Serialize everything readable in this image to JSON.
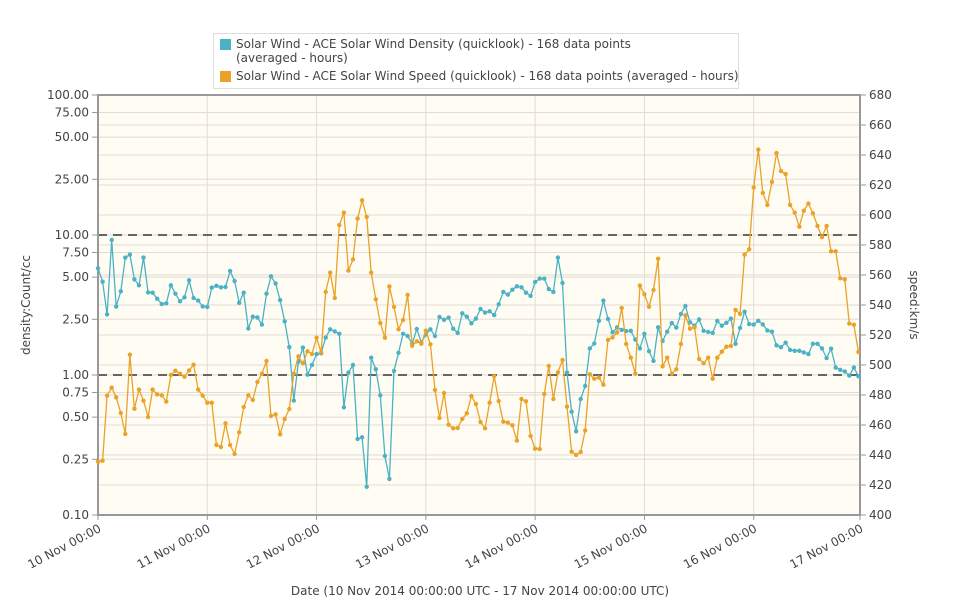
{
  "chart_data": {
    "type": "line",
    "title": "",
    "xlabel": "Date (10 Nov 2014 00:00:00 UTC - 17 Nov 2014 00:00:00 UTC)",
    "x_ticks": [
      "10 Nov 00:00",
      "11 Nov 00:00",
      "12 Nov 00:00",
      "13 Nov 00:00",
      "14 Nov 00:00",
      "15 Nov 00:00",
      "16 Nov 00:00",
      "17 Nov 00:00"
    ],
    "x_unit": "hours since 10 Nov 2014 00:00 UTC",
    "xlim": [
      0,
      168
    ],
    "y_left": {
      "label": "density:Count/cc",
      "scale": "log",
      "lim": [
        0.1,
        100
      ],
      "ticks": [
        0.1,
        0.25,
        0.5,
        0.75,
        1,
        2.5,
        5,
        7.5,
        10,
        25,
        50,
        75,
        100
      ],
      "tick_labels": [
        "0.10",
        "0.25",
        "0.50",
        "0.75",
        "1.00",
        "2.50",
        "5.00",
        "7.50",
        "10.00",
        "25.00",
        "50.00",
        "75.00",
        "100.00"
      ],
      "reference_lines": [
        1,
        10
      ]
    },
    "y_right": {
      "label": "speed:km/s",
      "scale": "linear",
      "lim": [
        400,
        680
      ],
      "ticks": [
        400,
        420,
        440,
        460,
        480,
        500,
        520,
        540,
        560,
        580,
        600,
        620,
        640,
        660,
        680
      ],
      "tick_labels": [
        "400",
        "420",
        "440",
        "460",
        "480",
        "500",
        "520",
        "540",
        "560",
        "580",
        "600",
        "620",
        "640",
        "660",
        "680"
      ]
    },
    "grid": true,
    "legend_position": "top-center",
    "series": [
      {
        "name": "Solar Wind - ACE Solar Wind Density (quicklook) - 168 data points (averaged - hours)",
        "axis": "left",
        "color": "#4bb2c5",
        "values": [
          5.78,
          4.64,
          2.71,
          9.21,
          3.08,
          3.96,
          6.89,
          7.24,
          4.82,
          4.37,
          6.89,
          3.89,
          3.87,
          3.51,
          3.21,
          3.25,
          4.37,
          3.81,
          3.36,
          3.59,
          4.75,
          3.55,
          3.4,
          3.09,
          3.06,
          4.21,
          4.34,
          4.23,
          4.25,
          5.53,
          4.69,
          3.28,
          3.87,
          2.15,
          2.61,
          2.58,
          2.29,
          3.81,
          5.07,
          4.51,
          3.43,
          2.42,
          1.58,
          0.656,
          1.245,
          1.57,
          1.005,
          1.18,
          1.41,
          1.43,
          1.85,
          2.12,
          2.05,
          1.97,
          0.588,
          1.04,
          1.18,
          0.349,
          0.359,
          0.159,
          1.33,
          1.1,
          0.716,
          0.264,
          0.181,
          1.07,
          1.44,
          1.97,
          1.9,
          1.67,
          2.13,
          1.71,
          1.95,
          2.12,
          1.9,
          2.6,
          2.48,
          2.57,
          2.14,
          2.0,
          2.76,
          2.61,
          2.34,
          2.53,
          2.96,
          2.79,
          2.85,
          2.68,
          3.2,
          3.92,
          3.75,
          4.07,
          4.3,
          4.23,
          3.87,
          3.67,
          4.62,
          4.88,
          4.88,
          4.11,
          3.92,
          6.89,
          4.54,
          1.04,
          0.547,
          0.396,
          0.674,
          0.834,
          1.55,
          1.68,
          2.44,
          3.4,
          2.51,
          2.02,
          2.19,
          2.1,
          2.06,
          2.07,
          1.79,
          1.55,
          1.97,
          1.48,
          1.26,
          2.19,
          1.75,
          2.04,
          2.35,
          2.18,
          2.73,
          3.11,
          2.38,
          2.25,
          2.49,
          2.07,
          2.03,
          2.0,
          2.43,
          2.25,
          2.36,
          2.53,
          1.67,
          2.17,
          2.83,
          2.31,
          2.29,
          2.44,
          2.3,
          2.08,
          2.04,
          1.63,
          1.58,
          1.7,
          1.51,
          1.49,
          1.49,
          1.45,
          1.41,
          1.67,
          1.67,
          1.55,
          1.32,
          1.54,
          1.13,
          1.09,
          1.06,
          0.99,
          1.13,
          0.98
        ]
      },
      {
        "name": "Solar Wind - ACE Solar Wind Speed (quicklook) - 168 data points (averaged - hours)",
        "axis": "right",
        "color": "#eaa228",
        "values": [
          435.6,
          436.2,
          479.6,
          484.9,
          478.4,
          468,
          454,
          506.9,
          470.9,
          483.6,
          476.2,
          465.3,
          483.6,
          480.4,
          479.8,
          475.6,
          493.3,
          496.2,
          494.2,
          492.2,
          496.4,
          500.2,
          483.6,
          479.6,
          474.9,
          474.9,
          446.7,
          445.3,
          461.1,
          446.7,
          440.7,
          455.1,
          472,
          479.8,
          476.7,
          488.7,
          494.2,
          502.7,
          466,
          467.1,
          453.8,
          464,
          470.7,
          494.2,
          505.8,
          501.1,
          509.1,
          507.3,
          518.2,
          508.4,
          548.7,
          561.6,
          544.7,
          593.3,
          601.6,
          562.9,
          570.4,
          597.6,
          609.8,
          598.7,
          561.6,
          543.8,
          528,
          518.2,
          552.4,
          538.7,
          523.8,
          530,
          546.7,
          512.9,
          515.8,
          514.2,
          522.9,
          513.8,
          483.3,
          464.7,
          481.3,
          460.2,
          457.8,
          458,
          464,
          467.8,
          479.3,
          474,
          462,
          457.8,
          474.9,
          492.7,
          476,
          462.2,
          461.6,
          459.8,
          449.6,
          477.3,
          475.8,
          452.7,
          444.2,
          444,
          480.7,
          499.3,
          477.3,
          495.1,
          503.3,
          472.2,
          442.2,
          440,
          442,
          456.4,
          493.8,
          490.9,
          491.6,
          486.9,
          516.7,
          518.4,
          521.8,
          538,
          514,
          504.9,
          494.2,
          552.9,
          547.1,
          538.9,
          550,
          570.9,
          499.1,
          504.9,
          494.2,
          497.1,
          514,
          533.1,
          524.2,
          525.1,
          504,
          501.1,
          504.9,
          490.9,
          504.9,
          508.9,
          512.2,
          512.7,
          536.7,
          534,
          573.6,
          577.1,
          618.4,
          643.6,
          614.7,
          606.7,
          622,
          641.3,
          629.3,
          627.3,
          606.7,
          601.6,
          592.2,
          602.9,
          607.6,
          601.1,
          592.7,
          585.3,
          592.7,
          575.8,
          575.8,
          557.8,
          557.1,
          527.6,
          526.9,
          508.7
        ]
      }
    ]
  },
  "legend": {
    "items": [
      {
        "label": "Solar Wind - ACE Solar Wind Density (quicklook) - 168 data points (averaged - hours)",
        "color": "#4bb2c5"
      },
      {
        "label": "Solar Wind - ACE Solar Wind Speed (quicklook) - 168 data points (averaged - hours)",
        "color": "#eaa228"
      }
    ]
  }
}
